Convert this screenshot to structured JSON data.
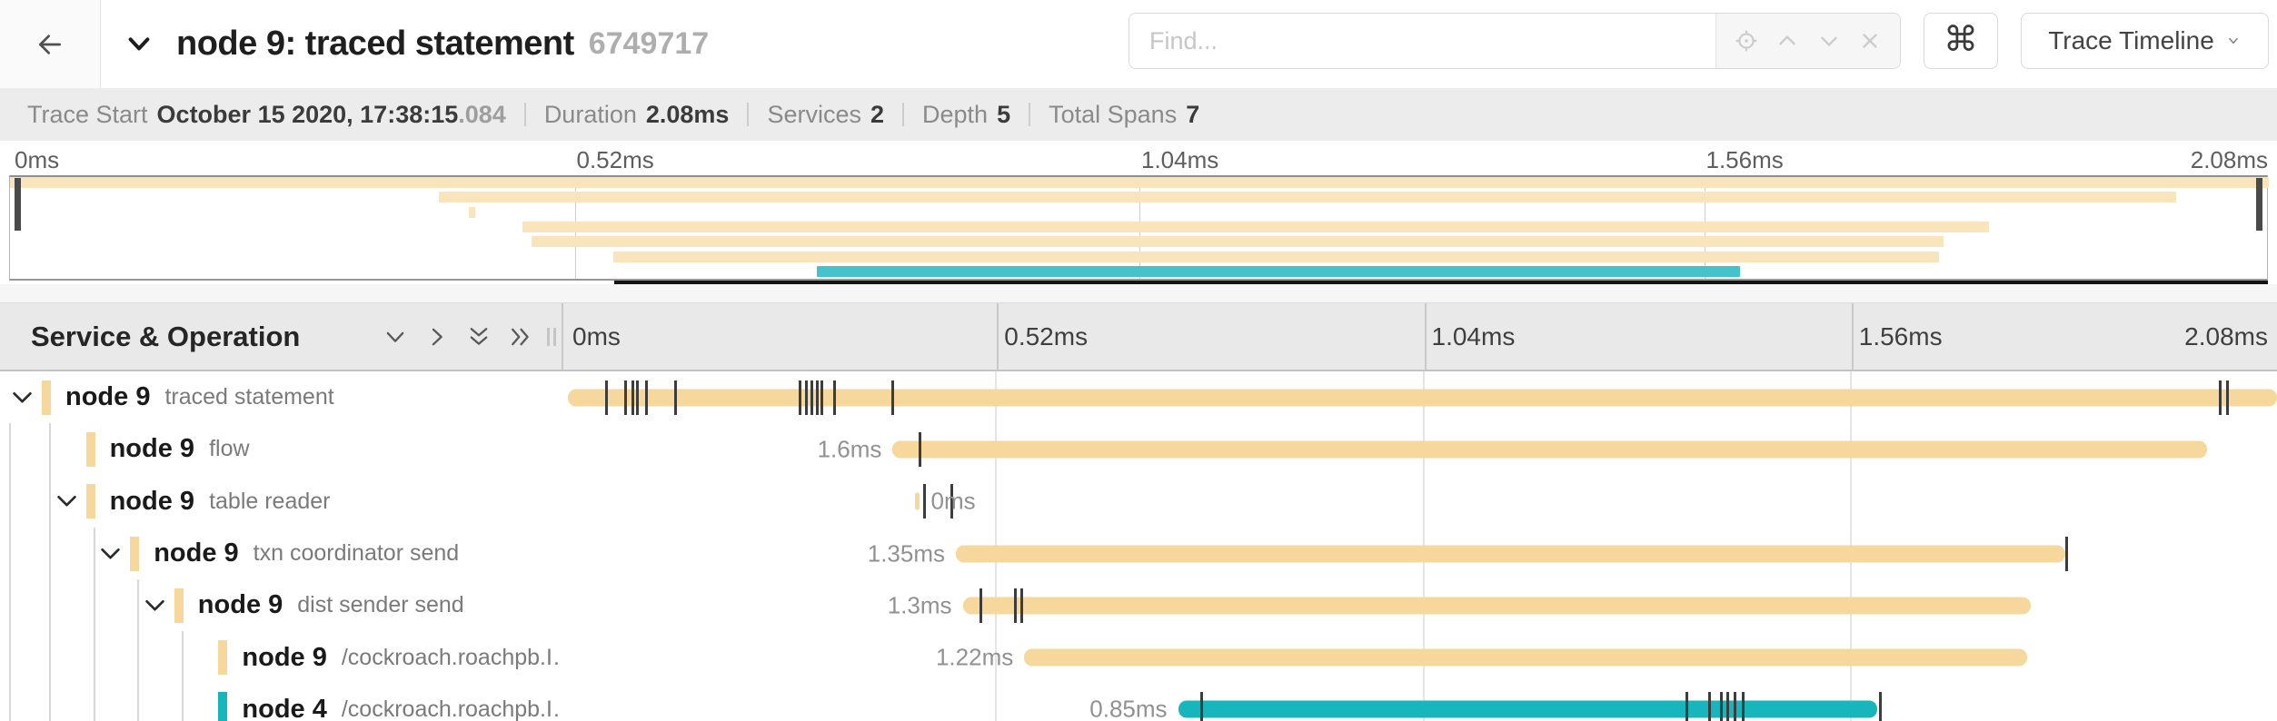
{
  "header": {
    "title": "node 9: traced statement",
    "trace_id_short": "6749717",
    "find": {
      "placeholder": "Find..."
    },
    "find_tools": [
      "scope-icon",
      "chevron-up-icon",
      "chevron-down-icon",
      "close-icon"
    ],
    "shortcut_label": "⌘",
    "view_dropdown_label": "Trace Timeline"
  },
  "summary": {
    "items": [
      {
        "label": "Trace Start",
        "value": "October 15 2020, 17:38:15",
        "suffix": ".084"
      },
      {
        "label": "Duration",
        "value": "2.08ms"
      },
      {
        "label": "Services",
        "value": "2"
      },
      {
        "label": "Depth",
        "value": "5"
      },
      {
        "label": "Total Spans",
        "value": "7"
      }
    ]
  },
  "timeline": {
    "tick_labels": [
      "0ms",
      "0.52ms",
      "1.04ms",
      "1.56ms",
      "2.08ms"
    ],
    "total_duration": "2.08ms"
  },
  "table": {
    "left_title": "Service & Operation",
    "collapse_icons": [
      "collapse-one-icon",
      "expand-one-icon",
      "collapse-all-icon",
      "expand-all-icon"
    ]
  },
  "spans": [
    {
      "service": "node 9",
      "operation": "traced statement",
      "depth": 0,
      "has_children": true,
      "color_key": "tan",
      "start_pct": 0,
      "width_pct": 100,
      "duration_label": "",
      "label_side": "none",
      "ticks_pct": [
        2.2,
        3.3,
        3.7,
        4.0,
        4.5,
        6.2,
        13.5,
        13.9,
        14.2,
        14.5,
        14.8,
        15.5,
        18.9,
        96.6,
        97.0
      ]
    },
    {
      "service": "node 9",
      "operation": "flow",
      "depth": 1,
      "has_children": false,
      "color_key": "tan",
      "start_pct": 19.0,
      "width_pct": 76.9,
      "duration_label": "1.6ms",
      "label_side": "left",
      "ticks_pct": [
        20.5
      ]
    },
    {
      "service": "node 9",
      "operation": "table reader",
      "depth": 1,
      "has_children": true,
      "color_key": "tan",
      "start_pct": 20.3,
      "width_pct": 0.3,
      "duration_label": "0ms",
      "label_side": "right",
      "ticks_pct": [
        20.8,
        22.4
      ]
    },
    {
      "service": "node 9",
      "operation": "txn coordinator send",
      "depth": 2,
      "has_children": true,
      "color_key": "tan",
      "start_pct": 22.7,
      "width_pct": 64.9,
      "duration_label": "1.35ms",
      "label_side": "left",
      "ticks_pct": [
        87.6
      ]
    },
    {
      "service": "node 9",
      "operation": "dist sender send",
      "depth": 3,
      "has_children": true,
      "color_key": "tan",
      "start_pct": 23.1,
      "width_pct": 62.5,
      "duration_label": "1.3ms",
      "label_side": "left",
      "ticks_pct": [
        24.1,
        26.1,
        26.5
      ]
    },
    {
      "service": "node 9",
      "operation": "/cockroach.roachpb.I…",
      "depth": 4,
      "has_children": false,
      "color_key": "tan",
      "start_pct": 26.7,
      "width_pct": 58.7,
      "duration_label": "1.22ms",
      "label_side": "left",
      "ticks_pct": []
    },
    {
      "service": "node 4",
      "operation": "/cockroach.roachpb.I…",
      "depth": 4,
      "has_children": false,
      "color_key": "teal",
      "start_pct": 35.7,
      "width_pct": 40.9,
      "duration_label": "0.85ms",
      "label_side": "left",
      "ticks_pct": [
        37.0,
        65.4,
        66.7,
        67.4,
        67.8,
        68.2,
        68.7,
        76.7
      ]
    }
  ],
  "colors": {
    "tan": "#F6D89D",
    "teal": "#17B5BC",
    "minimap_tan": "#F9E4BC",
    "minimap_teal": "#44C4CA"
  }
}
